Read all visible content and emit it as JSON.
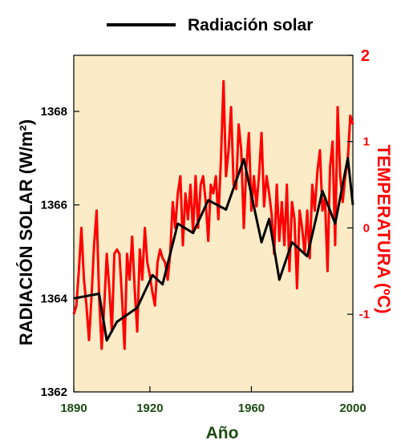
{
  "chart_data": {
    "type": "line",
    "legend": {
      "entries": [
        "Radiación solar"
      ],
      "placement": "top"
    },
    "xlabel": "Año",
    "xlim": [
      1890,
      2000
    ],
    "xticks": [
      "1890",
      "1920",
      "1960",
      "2000"
    ],
    "ylabel_left": "RADIACIÓN SOLAR (W/m²)",
    "ylim_left": [
      1362,
      1369.2
    ],
    "yticks_left": [
      "1362",
      "1364",
      "1366",
      "1368"
    ],
    "ylabel_right": "TEMPERATURA (ºC)",
    "ylim_right": [
      -1.9,
      2.0
    ],
    "yticks_right": [
      "-1",
      "0",
      "1",
      "2"
    ],
    "colors": {
      "background": "#fbebc6",
      "solar": "#000000",
      "temperature": "#ff0000",
      "left_text": "#000000",
      "right_text": "#ff0000",
      "x_ticks": "#1d4c13",
      "x_label": "#1d4c13"
    },
    "series": [
      {
        "name": "Radiación solar",
        "axis": "left",
        "x": [
          1890,
          1900,
          1903,
          1907,
          1915,
          1921,
          1925,
          1931,
          1937,
          1943,
          1950,
          1957,
          1964,
          1967,
          1971,
          1976,
          1982,
          1988,
          1993,
          1998,
          2000
        ],
        "values": [
          1364.0,
          1364.1,
          1363.1,
          1363.5,
          1363.8,
          1364.5,
          1364.3,
          1365.6,
          1365.4,
          1366.1,
          1365.9,
          1366.98,
          1365.2,
          1365.7,
          1364.4,
          1365.2,
          1364.9,
          1366.3,
          1365.6,
          1367.0,
          1366.0
        ]
      },
      {
        "axis": "right",
        "x": [
          1890,
          1891,
          1892,
          1893,
          1894,
          1895,
          1896,
          1897,
          1898,
          1899,
          1900,
          1901,
          1902,
          1903,
          1904,
          1905,
          1906,
          1907,
          1908,
          1909,
          1910,
          1911,
          1912,
          1913,
          1914,
          1915,
          1916,
          1917,
          1918,
          1919,
          1920,
          1921,
          1922,
          1923,
          1924,
          1925,
          1926,
          1927,
          1928,
          1929,
          1930,
          1931,
          1932,
          1933,
          1934,
          1935,
          1936,
          1937,
          1938,
          1939,
          1940,
          1941,
          1942,
          1943,
          1944,
          1945,
          1946,
          1947,
          1948,
          1949,
          1950,
          1951,
          1952,
          1953,
          1954,
          1955,
          1956,
          1957,
          1958,
          1959,
          1960,
          1961,
          1962,
          1963,
          1964,
          1965,
          1966,
          1967,
          1968,
          1969,
          1970,
          1971,
          1972,
          1973,
          1974,
          1975,
          1976,
          1977,
          1978,
          1979,
          1980,
          1981,
          1982,
          1983,
          1984,
          1985,
          1986,
          1987,
          1988,
          1989,
          1990,
          1991,
          1992,
          1993,
          1994,
          1995,
          1996,
          1997,
          1998,
          1999,
          2000
        ],
        "values": [
          -1.0,
          -0.9,
          -0.5,
          0.0,
          -0.6,
          -0.9,
          -1.3,
          -0.8,
          -0.2,
          0.2,
          -0.8,
          -1.4,
          -0.9,
          -0.3,
          -0.7,
          -1.2,
          -0.3,
          -0.25,
          -0.3,
          -0.8,
          -1.4,
          -0.3,
          -0.6,
          -0.1,
          -0.7,
          -1.2,
          -0.25,
          -0.6,
          0.0,
          -0.4,
          -0.55,
          -0.75,
          -0.9,
          -0.4,
          -0.25,
          -0.35,
          -0.4,
          -0.6,
          -0.3,
          0.3,
          0.0,
          0.4,
          0.6,
          -0.2,
          0.4,
          0.1,
          0.5,
          -0.05,
          0.6,
          0.0,
          0.5,
          0.6,
          0.3,
          -0.15,
          0.5,
          0.4,
          0.6,
          0.1,
          0.8,
          1.7,
          0.6,
          0.9,
          1.4,
          0.5,
          0.45,
          1.2,
          0.9,
          0.0,
          0.7,
          1.1,
          0.2,
          0.6,
          0.25,
          0.6,
          1.1,
          0.25,
          0.6,
          0.4,
          0.15,
          -0.3,
          0.5,
          -0.15,
          0.3,
          -0.2,
          0.5,
          -0.5,
          0.3,
          0.1,
          -0.7,
          0.2,
          0.0,
          -0.3,
          0.2,
          -0.35,
          0.5,
          0.2,
          0.65,
          0.9,
          0.2,
          0.35,
          -0.5,
          0.7,
          1.0,
          -0.2,
          1.4,
          0.6,
          0.3,
          0.6,
          0.8,
          1.3,
          1.2
        ]
      }
    ]
  }
}
